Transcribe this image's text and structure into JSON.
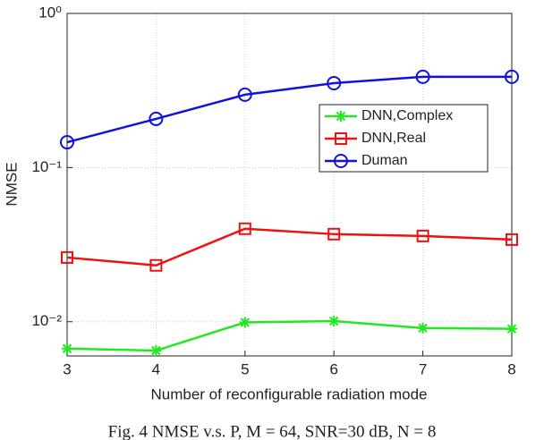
{
  "chart_data": {
    "type": "line",
    "caption": "Fig. 4 NMSE v.s. P, M = 64, SNR=30 dB, N = 8",
    "x_label": "Number of reconfigurable radiation mode",
    "y_label": "NMSE",
    "x": [
      3,
      4,
      5,
      6,
      7,
      8
    ],
    "xlim": [
      3,
      8
    ],
    "xticks": [
      3,
      4,
      5,
      6,
      7,
      8
    ],
    "ylim": [
      0.006,
      1
    ],
    "y_scale": "log",
    "yticks": [
      {
        "value": 0.01,
        "label": "10⁻²"
      },
      {
        "value": 0.1,
        "label": "10⁻¹"
      },
      {
        "value": 1,
        "label": "10⁰"
      }
    ],
    "grid": true,
    "legend_position": "right",
    "series": [
      {
        "name": "DNN,Complex",
        "color": "#22e822",
        "marker": "asterisk",
        "values": [
          0.0067,
          0.0065,
          0.0099,
          0.0101,
          0.0091,
          0.009
        ]
      },
      {
        "name": "DNN,Real",
        "color": "#ee1111",
        "marker": "square",
        "values": [
          0.0261,
          0.0232,
          0.0401,
          0.037,
          0.036,
          0.0341
        ]
      },
      {
        "name": "Duman",
        "color": "#1111dd",
        "marker": "circle",
        "values": [
          0.146,
          0.207,
          0.297,
          0.353,
          0.388,
          0.388
        ]
      }
    ]
  }
}
